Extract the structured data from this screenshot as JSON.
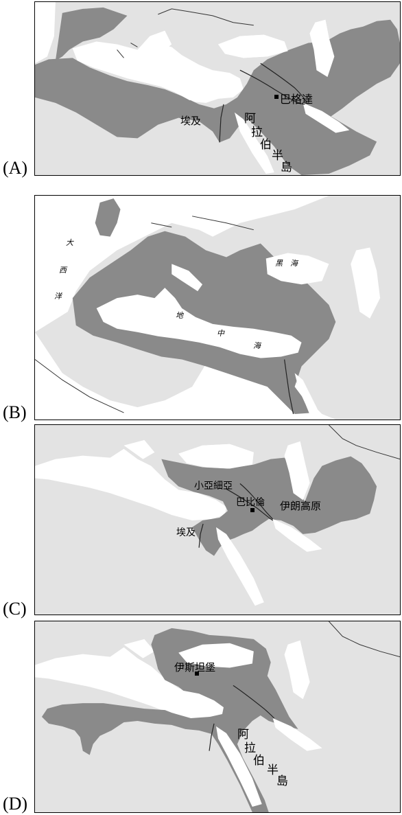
{
  "panels": [
    {
      "label": "(A)",
      "places": {
        "city": "巴格達",
        "egypt": "埃及",
        "arabia": [
          "阿",
          "拉",
          "伯",
          "半",
          "島"
        ]
      }
    },
    {
      "label": "(B)",
      "places": {
        "ocean": [
          "大",
          "西",
          "洋"
        ],
        "black_sea": "黑　海",
        "med": [
          "地",
          "中",
          "海"
        ]
      }
    },
    {
      "label": "(C)",
      "places": {
        "anatolia": "小亞細亞",
        "city": "巴比倫",
        "iran": "伊朗高原",
        "egypt": "埃及"
      }
    },
    {
      "label": "(D)",
      "places": {
        "city": "伊斯坦堡",
        "arabia": [
          "阿",
          "拉",
          "伯",
          "半",
          "島"
        ]
      }
    }
  ]
}
